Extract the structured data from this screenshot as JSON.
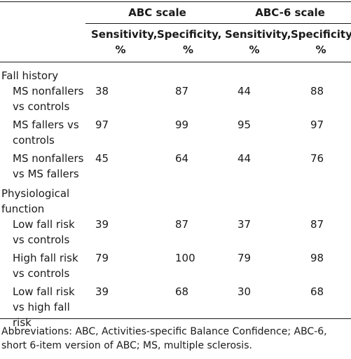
{
  "groups": [
    "ABC scale",
    "ABC-6 scale"
  ],
  "subheaders": [
    "Sensitivity, %",
    "Specificity, %",
    "Sensitivity, %",
    "Specificity, %"
  ],
  "sections": [
    {
      "title": "Fall history",
      "rows": [
        {
          "label": "MS nonfallers vs controls",
          "values": [
            "38",
            "87",
            "44",
            "88"
          ]
        },
        {
          "label": "MS fallers vs controls",
          "values": [
            "97",
            "99",
            "95",
            "97"
          ]
        },
        {
          "label": "MS nonfallers vs MS fallers",
          "values": [
            "45",
            "64",
            "44",
            "76"
          ]
        }
      ]
    },
    {
      "title": "Physiological function",
      "rows": [
        {
          "label": "Low fall risk vs controls",
          "values": [
            "39",
            "87",
            "37",
            "87"
          ]
        },
        {
          "label": "High fall risk vs controls",
          "values": [
            "79",
            "100",
            "79",
            "98"
          ]
        },
        {
          "label": "Low fall risk vs high fall risk",
          "values": [
            "39",
            "68",
            "30",
            "68"
          ]
        }
      ]
    }
  ],
  "footnote": "Abbreviations: ABC, Activities-specific Balance Confidence; ABC-6, short 6-item version of ABC; MS, multiple sclerosis."
}
